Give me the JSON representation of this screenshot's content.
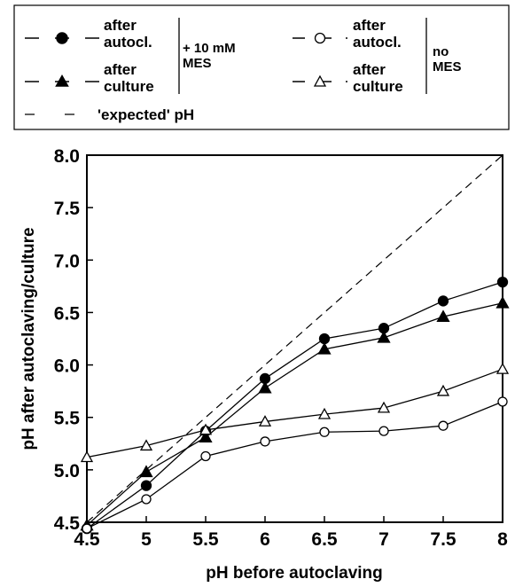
{
  "chart_data": {
    "type": "line",
    "title": "",
    "xlabel": "pH before autoclaving",
    "ylabel": "pH after autoclaving/culture",
    "xlim": [
      4.5,
      8
    ],
    "ylim": [
      4.5,
      8.0
    ],
    "x_ticks": [
      "4.5",
      "5",
      "5.5",
      "6",
      "6.5",
      "7",
      "7.5",
      "8"
    ],
    "y_ticks": [
      "4.5",
      "5.0",
      "5.5",
      "6.0",
      "6.5",
      "7.0",
      "7.5",
      "8.0"
    ],
    "grid": false,
    "legend_position": "top",
    "series": [
      {
        "id": "mes_autocl",
        "marker": "circle",
        "fill": "filled",
        "x": [
          4.5,
          5,
          5.5,
          6,
          6.5,
          7,
          7.5,
          8
        ],
        "y": [
          4.44,
          4.85,
          5.37,
          5.87,
          6.25,
          6.35,
          6.61,
          6.79
        ]
      },
      {
        "id": "mes_culture",
        "marker": "triangle",
        "fill": "filled",
        "x": [
          4.5,
          5,
          5.5,
          6,
          6.5,
          7,
          7.5,
          8
        ],
        "y": [
          4.47,
          4.98,
          5.31,
          5.78,
          6.15,
          6.26,
          6.46,
          6.59
        ]
      },
      {
        "id": "nomes_autocl",
        "marker": "circle",
        "fill": "open",
        "x": [
          4.5,
          5,
          5.5,
          6,
          6.5,
          7,
          7.5,
          8
        ],
        "y": [
          4.44,
          4.72,
          5.13,
          5.27,
          5.36,
          5.37,
          5.42,
          5.65
        ]
      },
      {
        "id": "nomes_culture",
        "marker": "triangle",
        "fill": "open",
        "x": [
          4.5,
          5,
          5.5,
          6,
          6.5,
          7,
          7.5,
          8
        ],
        "y": [
          5.12,
          5.23,
          5.38,
          5.46,
          5.53,
          5.59,
          5.75,
          5.96
        ]
      },
      {
        "id": "expected",
        "marker": "none",
        "dashed": true,
        "x": [
          4.5,
          8
        ],
        "y": [
          4.5,
          8.0
        ]
      }
    ],
    "legend": {
      "after_autocl": [
        "after",
        "autocl."
      ],
      "after_culture": [
        "after",
        "culture"
      ],
      "mes_group": [
        "+ 10 mM",
        "MES"
      ],
      "nomes_group": [
        "no",
        "MES"
      ],
      "expected": "'expected' pH"
    }
  }
}
